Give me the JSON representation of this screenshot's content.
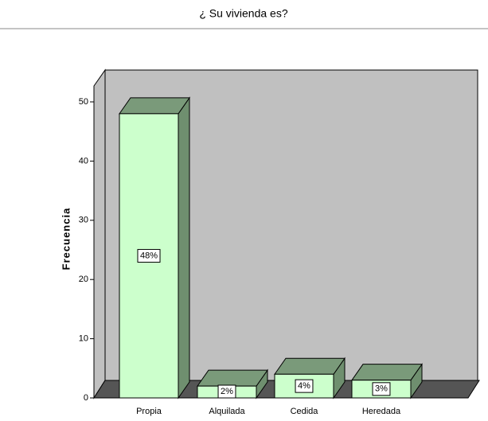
{
  "chart_data": {
    "type": "bar3d",
    "title": "¿ Su vivienda es?",
    "y_label": "Frecuencia",
    "categories": [
      "Propia",
      "Alquilada",
      "Cedida",
      "Heredada"
    ],
    "values": [
      48,
      2,
      4,
      3
    ],
    "value_labels": [
      "48%",
      "2%",
      "4%",
      "3%"
    ],
    "color": "#ccffcc",
    "ylim": [
      0,
      50
    ],
    "yticks": [
      0,
      10,
      20,
      30,
      40,
      50
    ]
  }
}
